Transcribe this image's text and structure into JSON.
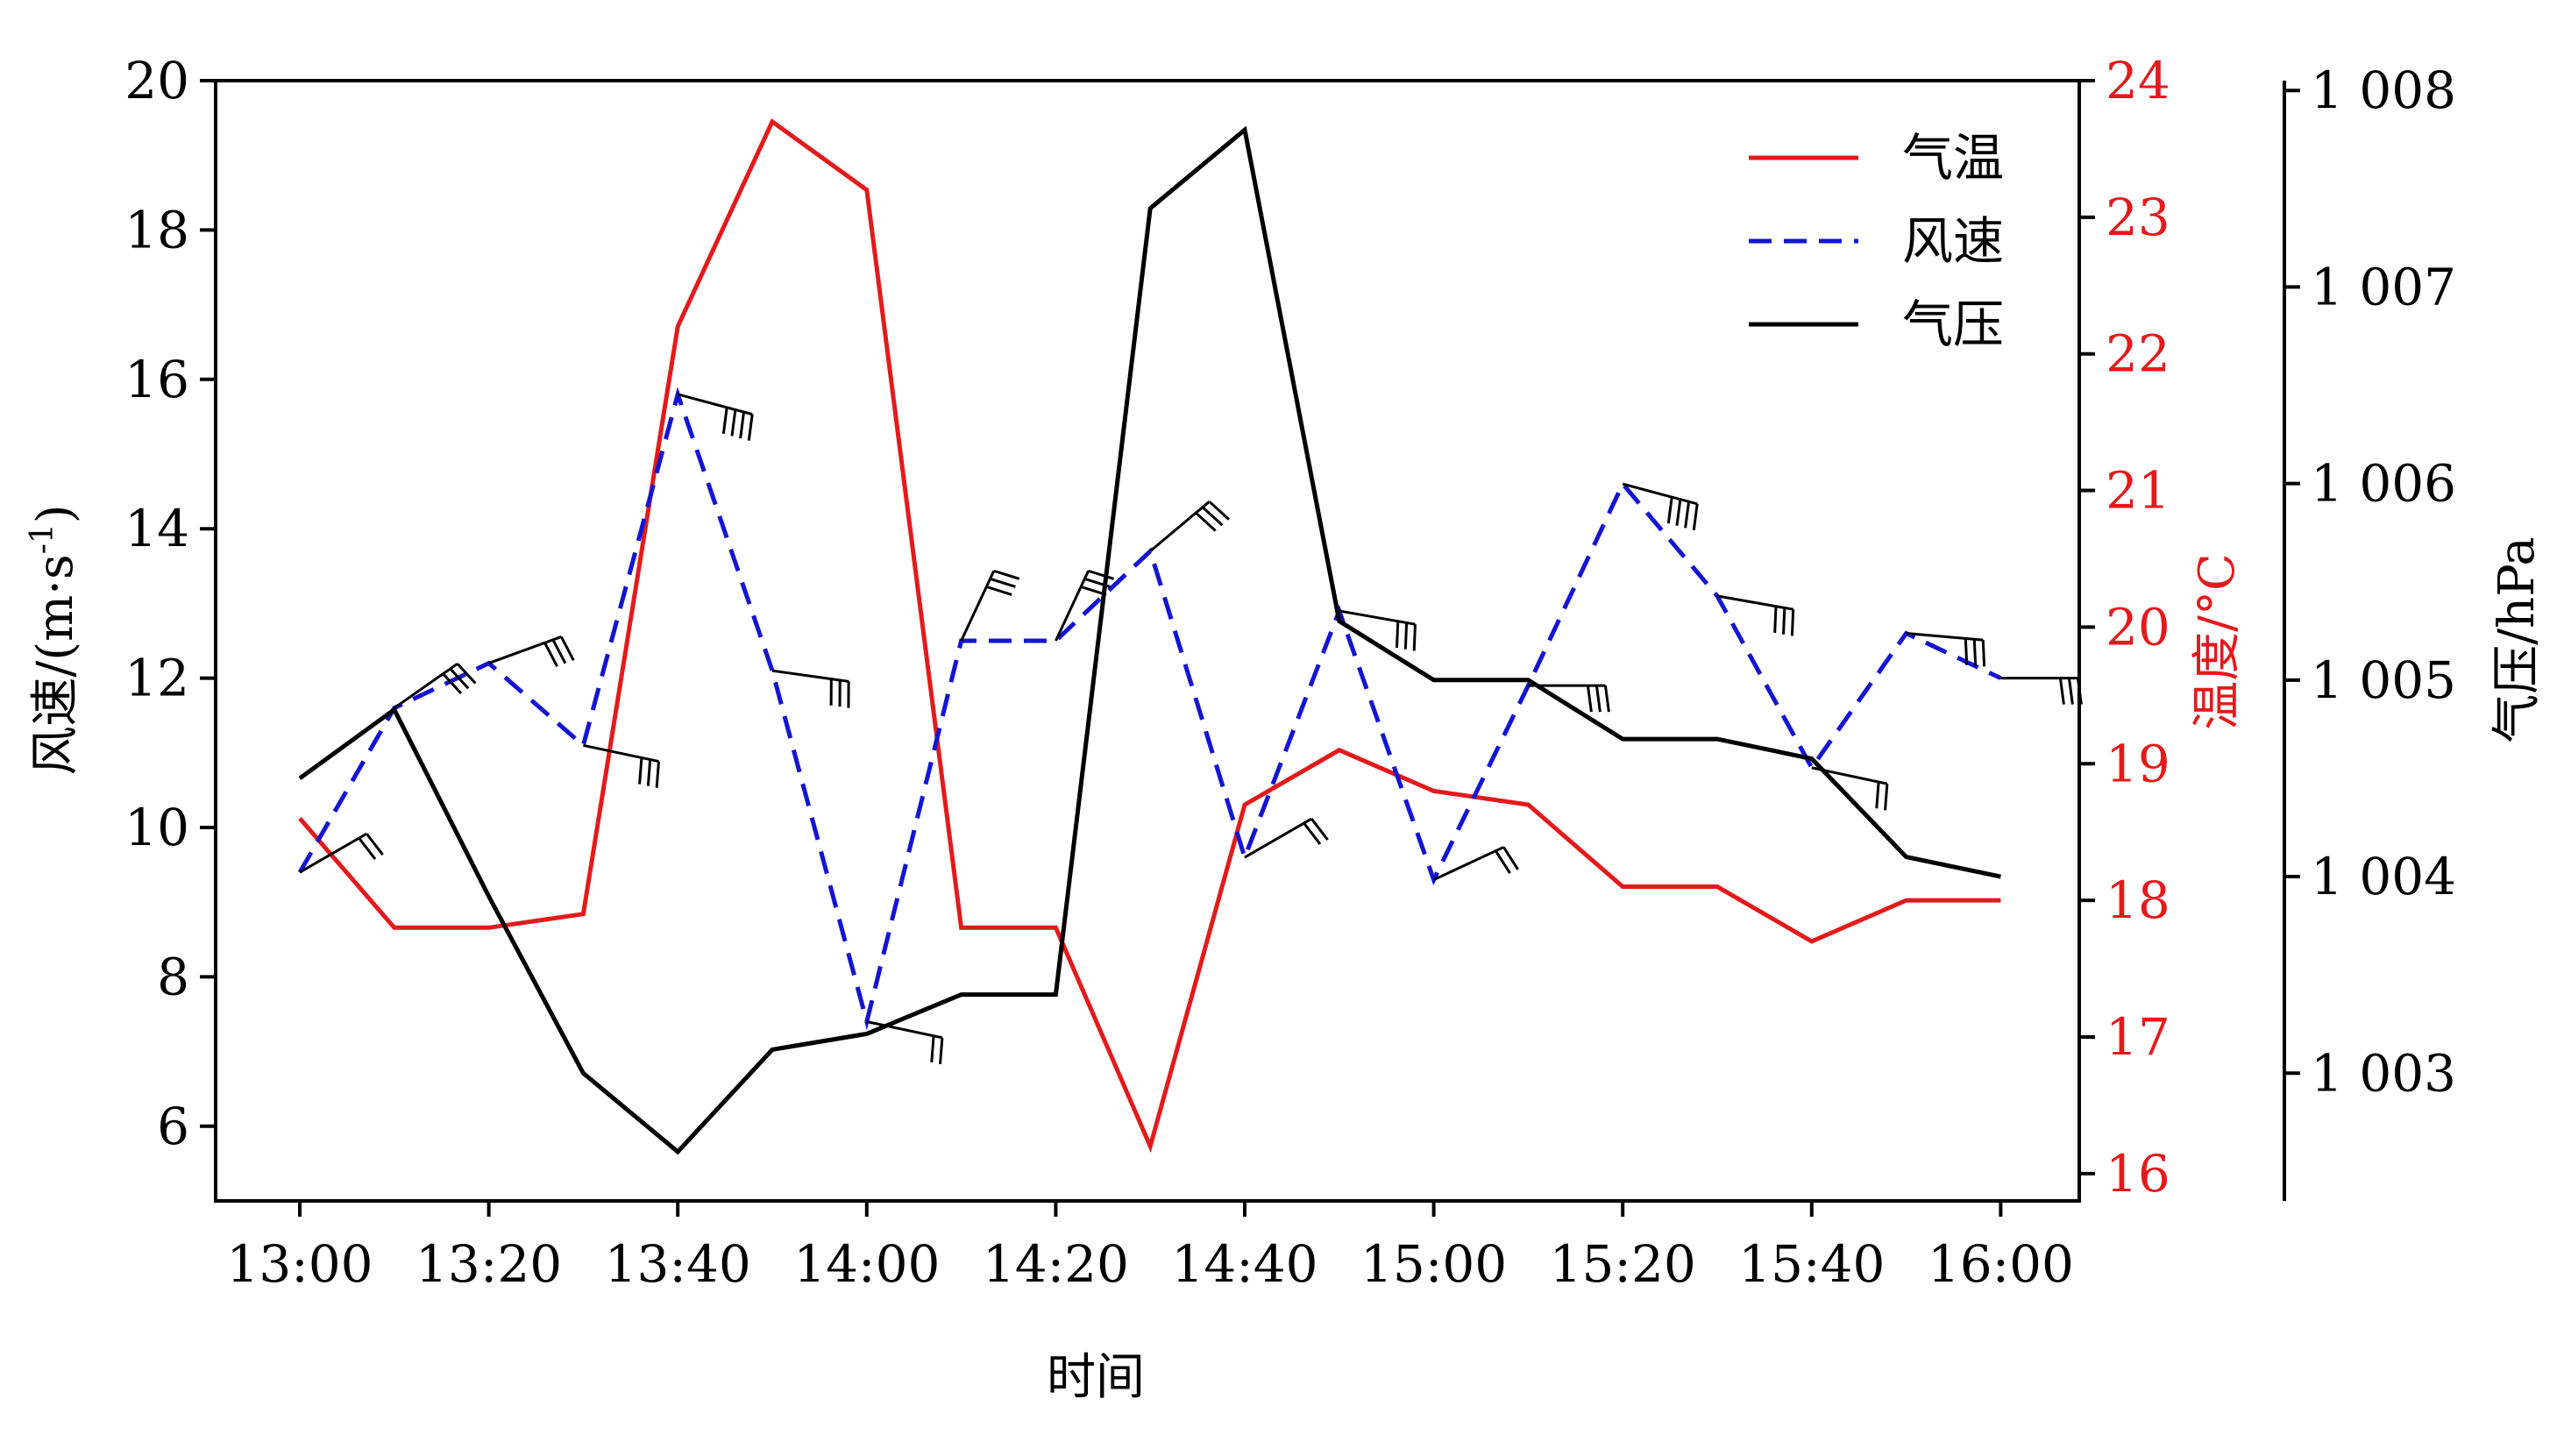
{
  "chart_data": {
    "type": "line",
    "title": "",
    "xlabel": "时间",
    "x": [
      "13:00",
      "13:10",
      "13:20",
      "13:30",
      "13:40",
      "13:50",
      "14:00",
      "14:10",
      "14:20",
      "14:30",
      "14:40",
      "14:50",
      "15:00",
      "15:10",
      "15:20",
      "15:30",
      "15:40",
      "15:50",
      "16:00"
    ],
    "x_ticks": [
      "13:00",
      "13:20",
      "13:40",
      "14:00",
      "14:20",
      "14:40",
      "15:00",
      "15:20",
      "15:40",
      "16:00"
    ],
    "axes": {
      "wind": {
        "label": "风速/(m·s",
        "label_sup": "-1",
        "label_end": ")",
        "ylim": [
          5,
          20
        ],
        "ticks": [
          6,
          8,
          10,
          12,
          14,
          16,
          18,
          20
        ],
        "color": "#000000"
      },
      "temp": {
        "label": "温度/°C",
        "ylim": [
          15.8,
          24
        ],
        "ticks": [
          16,
          17,
          18,
          19,
          20,
          21,
          22,
          23,
          24
        ],
        "color": "#e31a1c"
      },
      "pressure": {
        "label": "气压/hPa",
        "ylim": [
          1002.35,
          1008.05
        ],
        "ticks": [
          1003,
          1004,
          1005,
          1006,
          1007,
          1008
        ],
        "tick_labels": [
          "1 003",
          "1 004",
          "1 005",
          "1 006",
          "1 007",
          "1 008"
        ],
        "color": "#000000"
      }
    },
    "series": [
      {
        "name": "气温",
        "axis": "temp",
        "color": "#e31a1c",
        "dash": "solid",
        "values": [
          18.6,
          17.8,
          17.8,
          17.9,
          22.2,
          23.7,
          23.2,
          17.8,
          17.8,
          16.2,
          18.7,
          19.1,
          18.8,
          18.7,
          18.1,
          18.1,
          17.7,
          18.0,
          18.0
        ]
      },
      {
        "name": "风速",
        "axis": "wind",
        "color": "#1414d2",
        "dash": "dashed",
        "values": [
          9.4,
          11.6,
          12.2,
          11.1,
          15.8,
          12.1,
          7.4,
          12.5,
          12.5,
          13.7,
          9.6,
          12.9,
          9.3,
          11.9,
          14.6,
          13.1,
          10.8,
          12.6,
          12.0
        ]
      },
      {
        "name": "气压",
        "axis": "pressure",
        "color": "#000000",
        "dash": "solid",
        "values": [
          1004.5,
          1004.85,
          1003.9,
          1003.0,
          1002.6,
          1003.12,
          1003.2,
          1003.4,
          1003.4,
          1007.4,
          1007.8,
          1005.3,
          1005.0,
          1005.0,
          1004.7,
          1004.7,
          1004.6,
          1004.1,
          1004.0
        ]
      }
    ],
    "wind_barbs": "at each wind-speed point",
    "legend": {
      "placement": "top-right",
      "entries": [
        "气温",
        "风速",
        "气压"
      ]
    },
    "grid": false
  }
}
